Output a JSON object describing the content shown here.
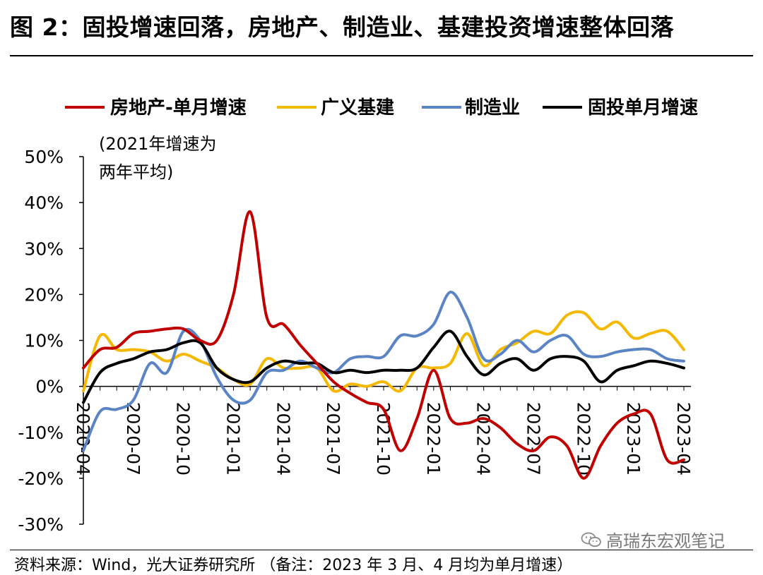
{
  "title": "图 2：固投增速回落，房地产、制造业、基建投资增速整体回落",
  "source": "资料来源：Wind，光大证券研究所  （备注：2023 年 3 月、4 月均为单月增速）",
  "watermark": "高瑞东宏观笔记",
  "watermark_icon": "wechat-icon",
  "chart_data": {
    "type": "line",
    "title": "图 2：固投增速回落，房地产、制造业、基建投资增速整体回落",
    "xlabel": "",
    "ylabel": "",
    "ylim": [
      -30,
      50
    ],
    "yticks": [
      -30,
      -20,
      -10,
      0,
      10,
      20,
      30,
      40,
      50
    ],
    "ytick_labels": [
      "-30%",
      "-20%",
      "-10%",
      "0%",
      "10%",
      "20%",
      "30%",
      "40%",
      "50%"
    ],
    "grid": false,
    "legend_position": "top",
    "x": [
      "2020-04",
      "2020-05",
      "2020-06",
      "2020-07",
      "2020-08",
      "2020-09",
      "2020-10",
      "2020-11",
      "2020-12",
      "2021-01",
      "2021-02",
      "2021-03",
      "2021-04",
      "2021-05",
      "2021-06",
      "2021-07",
      "2021-08",
      "2021-09",
      "2021-10",
      "2021-11",
      "2021-12",
      "2022-01",
      "2022-02",
      "2022-03",
      "2022-04",
      "2022-05",
      "2022-06",
      "2022-07",
      "2022-08",
      "2022-09",
      "2022-10",
      "2022-11",
      "2022-12",
      "2023-01",
      "2023-02",
      "2023-03",
      "2023-04"
    ],
    "xtick_labels": [
      "2020-04",
      "2020-07",
      "2020-10",
      "2021-01",
      "2021-04",
      "2021-07",
      "2021-10",
      "2022-01",
      "2022-04",
      "2022-07",
      "2022-10",
      "2023-01",
      "2023-04"
    ],
    "annotation": "(2021年增速为\n两年平均)",
    "series": [
      {
        "name": "房地产-单月增速",
        "color": "#C00000",
        "values": [
          4.0,
          8.0,
          8.5,
          11.5,
          12.0,
          12.5,
          12.5,
          10.0,
          10.0,
          20.0,
          38.0,
          15.0,
          13.5,
          9.0,
          5.0,
          1.0,
          -1.5,
          -3.5,
          -5.0,
          -14.0,
          -7.0,
          3.5,
          -7.0,
          -8.0,
          -7.0,
          -9.0,
          -12.5,
          -14.0,
          -11.0,
          -13.0,
          -20.0,
          -13.0,
          -8.0,
          -6.0,
          -6.0,
          -16.0,
          -16.0
        ]
      },
      {
        "name": "广义基建",
        "color": "#F5B800",
        "values": [
          -1.0,
          11.0,
          8.0,
          8.0,
          7.5,
          5.5,
          7.0,
          5.5,
          4.0,
          1.5,
          0.5,
          6.0,
          4.0,
          4.0,
          4.0,
          -1.0,
          0.5,
          0.0,
          1.0,
          -1.0,
          4.0,
          4.0,
          5.0,
          11.5,
          4.5,
          8.0,
          9.5,
          12.0,
          11.5,
          15.5,
          16.0,
          12.5,
          14.0,
          10.5,
          11.5,
          12.0,
          8.0
        ]
      },
      {
        "name": "制造业",
        "color": "#5B84C4",
        "values": [
          -14.0,
          -5.5,
          -5.0,
          -3.0,
          5.0,
          3.0,
          12.0,
          10.0,
          2.0,
          -3.0,
          -3.0,
          3.0,
          3.5,
          5.5,
          4.0,
          3.0,
          6.0,
          6.5,
          6.5,
          11.0,
          11.0,
          13.5,
          20.5,
          15.0,
          6.0,
          7.0,
          10.0,
          7.5,
          10.0,
          11.0,
          7.0,
          6.5,
          7.5,
          8.0,
          8.0,
          6.0,
          5.5
        ]
      },
      {
        "name": "固投单月增速",
        "color": "#000000",
        "values": [
          -3.5,
          3.0,
          5.0,
          6.0,
          7.5,
          8.0,
          9.5,
          9.5,
          4.0,
          1.5,
          1.0,
          4.0,
          5.5,
          5.0,
          5.0,
          3.0,
          3.5,
          3.0,
          3.5,
          3.5,
          4.0,
          8.5,
          12.0,
          6.5,
          2.5,
          5.0,
          6.0,
          3.5,
          6.0,
          6.5,
          5.5,
          1.0,
          3.5,
          4.5,
          5.5,
          5.0,
          4.0
        ]
      }
    ]
  }
}
